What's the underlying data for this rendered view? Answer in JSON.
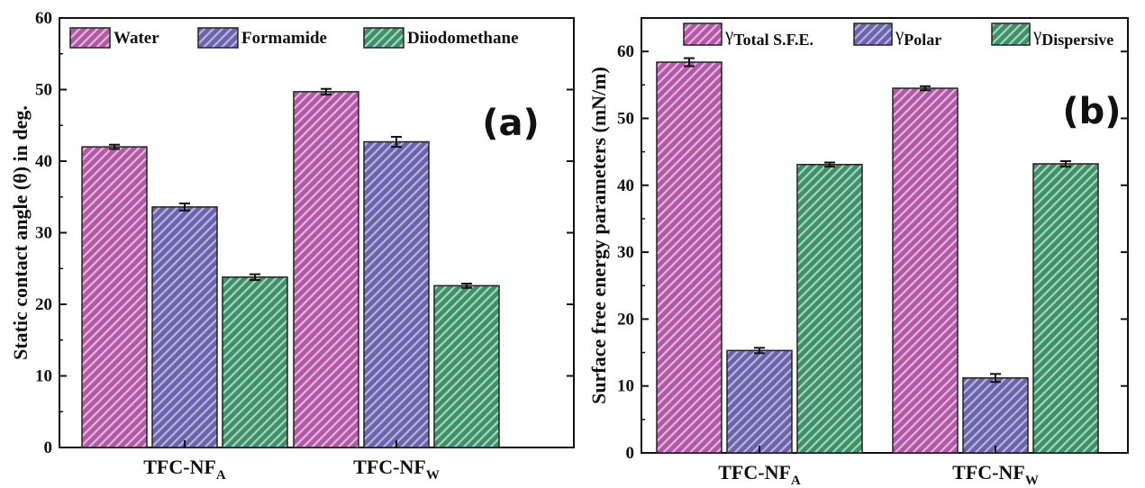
{
  "colors": {
    "water": "#b05aa6",
    "formamide": "#6b64ab",
    "diiodomethane": "#3f8f6a",
    "axis": "#111111"
  },
  "chart_data": [
    {
      "panel": "a",
      "type": "bar",
      "panel_label": "(a)",
      "ylabel": "Static contact angle (θ) in deg.",
      "ylim": [
        0,
        60
      ],
      "yticks": [
        0,
        10,
        20,
        30,
        40,
        50,
        60
      ],
      "categories": [
        {
          "base": "TFC-NF",
          "sub": "A"
        },
        {
          "base": "TFC-NF",
          "sub": "W"
        }
      ],
      "legend_position": "top",
      "series": [
        {
          "name": "Water",
          "color_key": "water",
          "values": [
            42.0,
            49.7
          ],
          "errors": [
            0.3,
            0.4
          ]
        },
        {
          "name": "Formamide",
          "color_key": "formamide",
          "values": [
            33.6,
            42.7
          ],
          "errors": [
            0.5,
            0.7
          ]
        },
        {
          "name": "Diiodomethane",
          "color_key": "diiodomethane",
          "values": [
            23.8,
            22.6
          ],
          "errors": [
            0.4,
            0.3
          ]
        }
      ]
    },
    {
      "panel": "b",
      "type": "bar",
      "panel_label": "(b)",
      "ylabel": "Surface free energy parameters (mN/m)",
      "ylim": [
        0,
        65
      ],
      "yticks": [
        0,
        10,
        20,
        30,
        40,
        50,
        60
      ],
      "categories": [
        {
          "base": "TFC-NF",
          "sub": "A"
        },
        {
          "base": "TFC-NF",
          "sub": "W"
        }
      ],
      "legend_position": "top",
      "series": [
        {
          "name": "Total S.F.E.",
          "legend_symbol": "γ",
          "color_key": "water",
          "values": [
            58.4,
            54.5
          ],
          "errors": [
            0.6,
            0.3
          ]
        },
        {
          "name": "Polar",
          "legend_symbol": "γ",
          "color_key": "formamide",
          "values": [
            15.3,
            11.2
          ],
          "errors": [
            0.4,
            0.6
          ]
        },
        {
          "name": "Dispersive",
          "legend_symbol": "γ",
          "color_key": "diiodomethane",
          "values": [
            43.1,
            43.2
          ],
          "errors": [
            0.3,
            0.4
          ]
        }
      ]
    }
  ]
}
